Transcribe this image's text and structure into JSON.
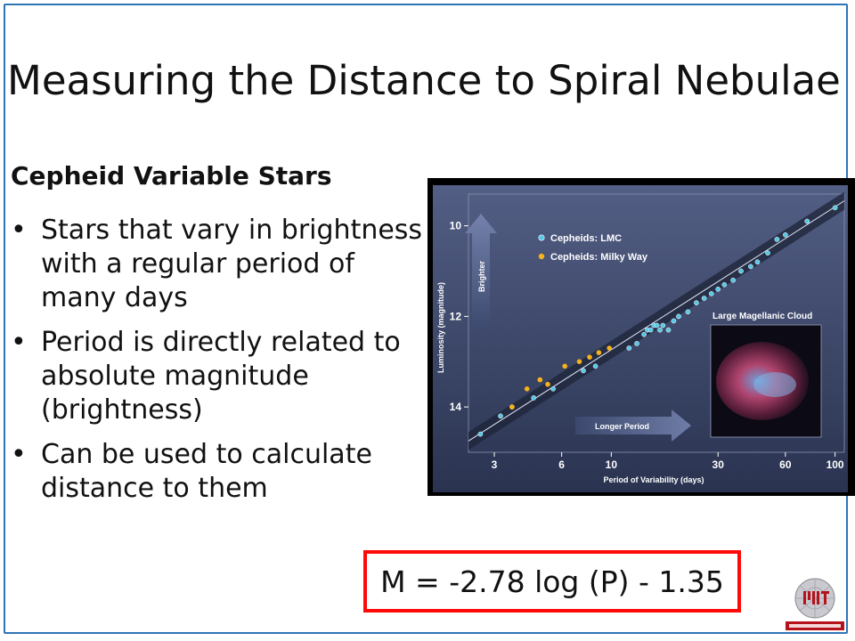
{
  "slide": {
    "title": "Measuring the Distance to Spiral Nebulae",
    "subheading": "Cepheid Variable Stars",
    "bullets": [
      "Stars that vary in brightness with a regular period of many days",
      "Period is directly related to absolute magnitude (brightness)",
      "Can be used to  calculate distance to them"
    ],
    "formula": "M = -2.78 log (P) - 1.35"
  },
  "colors": {
    "frame": "#2e75b6",
    "formula_border": "#ff0a0a",
    "chart_bg": "#3a4566",
    "lmc_point": "#55c8e6",
    "milky_way_point": "#f5b21b"
  },
  "chart_data": {
    "type": "scatter",
    "xlabel": "Period of Variability (days)",
    "ylabel": "Luminosity (magnitude)",
    "x_scale": "log",
    "y_inverted": true,
    "x_ticks": [
      "3",
      "6",
      "10",
      "30",
      "60",
      "100"
    ],
    "y_ticks": [
      "10",
      "12",
      "14"
    ],
    "xlim": [
      2.3,
      110
    ],
    "ylim": [
      15.0,
      9.3
    ],
    "legend": [
      "Cepheids: LMC",
      "Cepheids: Milky Way"
    ],
    "legend_position": "top-left",
    "arrow_labels": {
      "up": "Brighter",
      "right": "Longer Period"
    },
    "inset_label": "Large Magellanic Cloud",
    "series": [
      {
        "name": "Cepheids: LMC",
        "points": [
          [
            2.6,
            14.6
          ],
          [
            3.2,
            14.2
          ],
          [
            3.6,
            14.0
          ],
          [
            4.5,
            13.8
          ],
          [
            5.5,
            13.6
          ],
          [
            7.5,
            13.2
          ],
          [
            8.5,
            13.1
          ],
          [
            12,
            12.7
          ],
          [
            13,
            12.6
          ],
          [
            14,
            12.4
          ],
          [
            14.5,
            12.3
          ],
          [
            15,
            12.3
          ],
          [
            15.5,
            12.2
          ],
          [
            16,
            12.2
          ],
          [
            16.5,
            12.3
          ],
          [
            17,
            12.2
          ],
          [
            18,
            12.3
          ],
          [
            19,
            12.1
          ],
          [
            20,
            12.0
          ],
          [
            22,
            11.9
          ],
          [
            24,
            11.7
          ],
          [
            26,
            11.6
          ],
          [
            28,
            11.5
          ],
          [
            30,
            11.4
          ],
          [
            32,
            11.3
          ],
          [
            35,
            11.2
          ],
          [
            38,
            11.0
          ],
          [
            42,
            10.9
          ],
          [
            45,
            10.8
          ],
          [
            50,
            10.6
          ],
          [
            55,
            10.3
          ],
          [
            60,
            10.2
          ],
          [
            75,
            9.9
          ],
          [
            100,
            9.6
          ]
        ]
      },
      {
        "name": "Cepheids: Milky Way",
        "points": [
          [
            3.6,
            14.0
          ],
          [
            4.2,
            13.6
          ],
          [
            4.8,
            13.4
          ],
          [
            5.2,
            13.5
          ],
          [
            6.2,
            13.1
          ],
          [
            7.2,
            13.0
          ],
          [
            8.0,
            12.9
          ],
          [
            8.8,
            12.8
          ],
          [
            9.8,
            12.7
          ]
        ]
      }
    ]
  }
}
